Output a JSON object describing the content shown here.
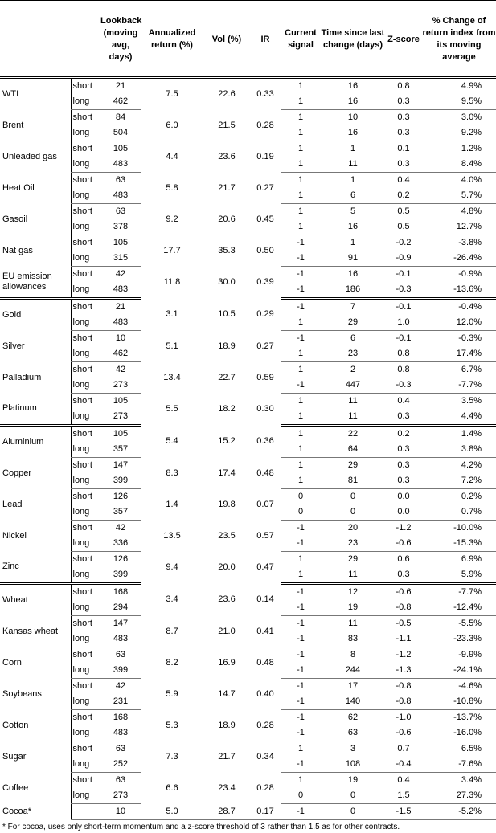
{
  "headers": [
    "",
    "",
    "Lookback (moving avg, days)",
    "Annualized return (%)",
    "Vol (%)",
    "IR",
    "Current signal",
    "Time since last change (days)",
    "Z-score",
    "% Change of return index from its moving average"
  ],
  "groups": [
    [
      {
        "name": "WTI",
        "ret": "7.5",
        "vol": "22.6",
        "ir": "0.33",
        "rows": [
          [
            "short",
            "21",
            "1",
            "16",
            "0.8",
            "4.9%"
          ],
          [
            "long",
            "462",
            "1",
            "16",
            "0.3",
            "9.5%"
          ]
        ]
      },
      {
        "name": "Brent",
        "ret": "6.0",
        "vol": "21.5",
        "ir": "0.28",
        "rows": [
          [
            "short",
            "84",
            "1",
            "10",
            "0.3",
            "3.0%"
          ],
          [
            "long",
            "504",
            "1",
            "16",
            "0.3",
            "9.2%"
          ]
        ]
      },
      {
        "name": "Unleaded gas",
        "ret": "4.4",
        "vol": "23.6",
        "ir": "0.19",
        "rows": [
          [
            "short",
            "105",
            "1",
            "1",
            "0.1",
            "1.2%"
          ],
          [
            "long",
            "483",
            "1",
            "11",
            "0.3",
            "8.4%"
          ]
        ]
      },
      {
        "name": "Heat Oil",
        "ret": "5.8",
        "vol": "21.7",
        "ir": "0.27",
        "rows": [
          [
            "short",
            "63",
            "1",
            "1",
            "0.4",
            "4.0%"
          ],
          [
            "long",
            "483",
            "1",
            "6",
            "0.2",
            "5.7%"
          ]
        ]
      },
      {
        "name": "Gasoil",
        "ret": "9.2",
        "vol": "20.6",
        "ir": "0.45",
        "rows": [
          [
            "short",
            "63",
            "1",
            "5",
            "0.5",
            "4.8%"
          ],
          [
            "long",
            "378",
            "1",
            "16",
            "0.5",
            "12.7%"
          ]
        ]
      },
      {
        "name": "Nat gas",
        "ret": "17.7",
        "vol": "35.3",
        "ir": "0.50",
        "rows": [
          [
            "short",
            "105",
            "-1",
            "1",
            "-0.2",
            "-3.8%"
          ],
          [
            "long",
            "315",
            "-1",
            "91",
            "-0.9",
            "-26.4%"
          ]
        ]
      },
      {
        "name": "EU emission allowances",
        "ret": "11.8",
        "vol": "30.0",
        "ir": "0.39",
        "rows": [
          [
            "short",
            "42",
            "-1",
            "16",
            "-0.1",
            "-0.9%"
          ],
          [
            "long",
            "483",
            "-1",
            "186",
            "-0.3",
            "-13.6%"
          ]
        ]
      }
    ],
    [
      {
        "name": "Gold",
        "ret": "3.1",
        "vol": "10.5",
        "ir": "0.29",
        "rows": [
          [
            "short",
            "21",
            "-1",
            "7",
            "-0.1",
            "-0.4%"
          ],
          [
            "long",
            "483",
            "1",
            "29",
            "1.0",
            "12.0%"
          ]
        ]
      },
      {
        "name": "Silver",
        "ret": "5.1",
        "vol": "18.9",
        "ir": "0.27",
        "rows": [
          [
            "short",
            "10",
            "-1",
            "6",
            "-0.1",
            "-0.3%"
          ],
          [
            "long",
            "462",
            "1",
            "23",
            "0.8",
            "17.4%"
          ]
        ]
      },
      {
        "name": "Palladium",
        "ret": "13.4",
        "vol": "22.7",
        "ir": "0.59",
        "rows": [
          [
            "short",
            "42",
            "1",
            "2",
            "0.8",
            "6.7%"
          ],
          [
            "long",
            "273",
            "-1",
            "447",
            "-0.3",
            "-7.7%"
          ]
        ]
      },
      {
        "name": "Platinum",
        "ret": "5.5",
        "vol": "18.2",
        "ir": "0.30",
        "rows": [
          [
            "short",
            "105",
            "1",
            "11",
            "0.4",
            "3.5%"
          ],
          [
            "long",
            "273",
            "1",
            "11",
            "0.3",
            "4.4%"
          ]
        ]
      }
    ],
    [
      {
        "name": "Aluminium",
        "ret": "5.4",
        "vol": "15.2",
        "ir": "0.36",
        "rows": [
          [
            "short",
            "105",
            "1",
            "22",
            "0.2",
            "1.4%"
          ],
          [
            "long",
            "357",
            "1",
            "64",
            "0.3",
            "3.8%"
          ]
        ]
      },
      {
        "name": "Copper",
        "ret": "8.3",
        "vol": "17.4",
        "ir": "0.48",
        "rows": [
          [
            "short",
            "147",
            "1",
            "29",
            "0.3",
            "4.2%"
          ],
          [
            "long",
            "399",
            "1",
            "81",
            "0.3",
            "7.2%"
          ]
        ]
      },
      {
        "name": "Lead",
        "ret": "1.4",
        "vol": "19.8",
        "ir": "0.07",
        "rows": [
          [
            "short",
            "126",
            "0",
            "0",
            "0.0",
            "0.2%"
          ],
          [
            "long",
            "357",
            "0",
            "0",
            "0.0",
            "0.7%"
          ]
        ]
      },
      {
        "name": "Nickel",
        "ret": "13.5",
        "vol": "23.5",
        "ir": "0.57",
        "rows": [
          [
            "short",
            "42",
            "-1",
            "20",
            "-1.2",
            "-10.0%"
          ],
          [
            "long",
            "336",
            "-1",
            "23",
            "-0.6",
            "-15.3%"
          ]
        ]
      },
      {
        "name": "Zinc",
        "ret": "9.4",
        "vol": "20.0",
        "ir": "0.47",
        "rows": [
          [
            "short",
            "126",
            "1",
            "29",
            "0.6",
            "6.9%"
          ],
          [
            "long",
            "399",
            "1",
            "11",
            "0.3",
            "5.9%"
          ]
        ]
      }
    ],
    [
      {
        "name": "Wheat",
        "ret": "3.4",
        "vol": "23.6",
        "ir": "0.14",
        "rows": [
          [
            "short",
            "168",
            "-1",
            "12",
            "-0.6",
            "-7.7%"
          ],
          [
            "long",
            "294",
            "-1",
            "19",
            "-0.8",
            "-12.4%"
          ]
        ]
      },
      {
        "name": "Kansas wheat",
        "ret": "8.7",
        "vol": "21.0",
        "ir": "0.41",
        "rows": [
          [
            "short",
            "147",
            "-1",
            "11",
            "-0.5",
            "-5.5%"
          ],
          [
            "long",
            "483",
            "-1",
            "83",
            "-1.1",
            "-23.3%"
          ]
        ]
      },
      {
        "name": "Corn",
        "ret": "8.2",
        "vol": "16.9",
        "ir": "0.48",
        "rows": [
          [
            "short",
            "63",
            "-1",
            "8",
            "-1.2",
            "-9.9%"
          ],
          [
            "long",
            "399",
            "-1",
            "244",
            "-1.3",
            "-24.1%"
          ]
        ]
      },
      {
        "name": "Soybeans",
        "ret": "5.9",
        "vol": "14.7",
        "ir": "0.40",
        "rows": [
          [
            "short",
            "42",
            "-1",
            "17",
            "-0.8",
            "-4.6%"
          ],
          [
            "long",
            "231",
            "-1",
            "140",
            "-0.8",
            "-10.8%"
          ]
        ]
      },
      {
        "name": "Cotton",
        "ret": "5.3",
        "vol": "18.9",
        "ir": "0.28",
        "rows": [
          [
            "short",
            "168",
            "-1",
            "62",
            "-1.0",
            "-13.7%"
          ],
          [
            "long",
            "483",
            "-1",
            "63",
            "-0.6",
            "-16.0%"
          ]
        ]
      },
      {
        "name": "Sugar",
        "ret": "7.3",
        "vol": "21.7",
        "ir": "0.34",
        "rows": [
          [
            "short",
            "63",
            "1",
            "3",
            "0.7",
            "6.5%"
          ],
          [
            "long",
            "252",
            "-1",
            "108",
            "-0.4",
            "-7.6%"
          ]
        ]
      },
      {
        "name": "Coffee",
        "ret": "6.6",
        "vol": "23.4",
        "ir": "0.28",
        "rows": [
          [
            "short",
            "63",
            "1",
            "19",
            "0.4",
            "3.4%"
          ],
          [
            "long",
            "273",
            "0",
            "0",
            "1.5",
            "27.3%"
          ]
        ]
      },
      {
        "name": "Cocoa*",
        "ret": "5.0",
        "vol": "28.7",
        "ir": "0.17",
        "rows": [
          [
            "",
            "10",
            "-1",
            "0",
            "-1.5",
            "-5.2%"
          ]
        ]
      }
    ]
  ],
  "footnote": "* For cocoa, uses only short-term momentum and a z-score threshold of 3 rather than 1.5 as for other contracts."
}
